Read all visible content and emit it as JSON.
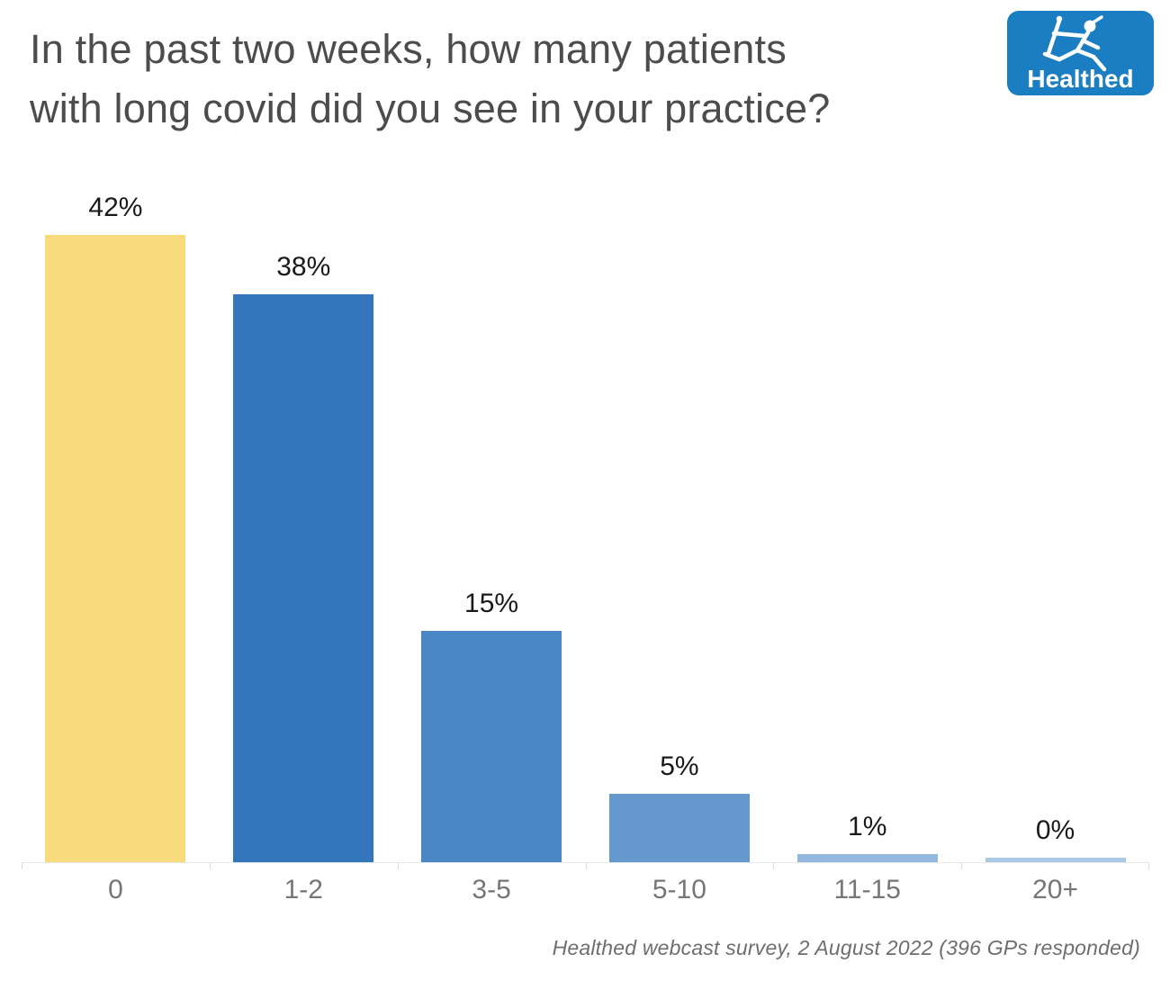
{
  "header": {
    "title_lines": [
      "In the past two weeks, how many patients",
      "with long covid did you see in your practice?"
    ],
    "logo": {
      "text": "Healthed",
      "icon": "hermes-runner-icon",
      "background_color": "#1b7ec2",
      "foreground_color": "#ffffff"
    }
  },
  "chart_data": {
    "type": "bar",
    "title": "In the past two weeks, how many patients with long covid did you see in your practice?",
    "categories": [
      "0",
      "1-2",
      "3-5",
      "5-10",
      "11-15",
      "20+"
    ],
    "values": [
      42,
      38,
      15,
      5,
      1,
      0
    ],
    "value_labels": [
      "42%",
      "38%",
      "15%",
      "5%",
      "1%",
      "0%"
    ],
    "plotted_values": [
      42,
      38,
      15.5,
      4.6,
      0.55,
      0.28
    ],
    "bar_colors": [
      "#f8db7d",
      "#3376bb",
      "#4a86c5",
      "#6598cc",
      "#92b8de",
      "#a9cae7"
    ],
    "unit": "%",
    "xlabel": "",
    "ylabel": "",
    "ylim": [
      0,
      45
    ],
    "y_axis_shown": false,
    "gridlines": false,
    "legend": false,
    "axis_line_color": "#e8e8e8",
    "tick_color": "#dcdcdc",
    "category_label_color": "#767676",
    "value_label_color": "#1a1a1a"
  },
  "footer": {
    "source": "Healthed webcast survey, 2 August 2022 (396 GPs responded)"
  }
}
